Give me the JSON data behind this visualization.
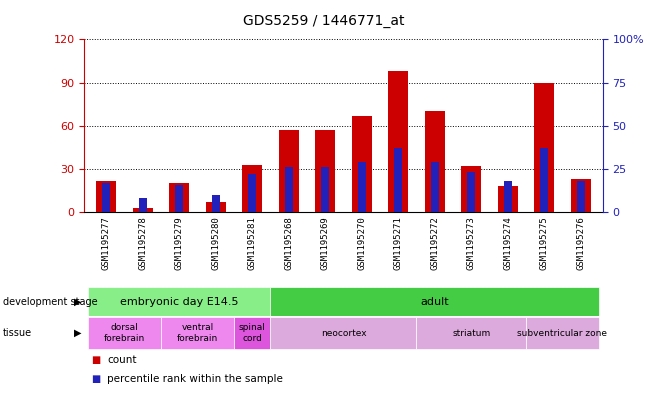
{
  "title": "GDS5259 / 1446771_at",
  "samples": [
    "GSM1195277",
    "GSM1195278",
    "GSM1195279",
    "GSM1195280",
    "GSM1195281",
    "GSM1195268",
    "GSM1195269",
    "GSM1195270",
    "GSM1195271",
    "GSM1195272",
    "GSM1195273",
    "GSM1195274",
    "GSM1195275",
    "GSM1195276"
  ],
  "count_values": [
    22,
    3,
    20,
    7,
    33,
    57,
    57,
    67,
    98,
    70,
    32,
    18,
    90,
    23
  ],
  "percentile_values": [
    17,
    8,
    16,
    10,
    22,
    26,
    26,
    29,
    37,
    29,
    23,
    18,
    37,
    18
  ],
  "ylim_left": [
    0,
    120
  ],
  "ylim_right": [
    0,
    100
  ],
  "yticks_left": [
    0,
    30,
    60,
    90,
    120
  ],
  "yticks_right": [
    0,
    25,
    50,
    75,
    100
  ],
  "yticklabels_right": [
    "0",
    "25",
    "50",
    "75",
    "100%"
  ],
  "bar_color": "#cc0000",
  "percentile_color": "#2222bb",
  "plot_bg": "#ffffff",
  "xticklabel_bg": "#cccccc",
  "left_tick_color": "#cc0000",
  "right_tick_color": "#2222bb",
  "development_stages": [
    {
      "label": "embryonic day E14.5",
      "start": 0,
      "end": 5,
      "color": "#88ee88"
    },
    {
      "label": "adult",
      "start": 5,
      "end": 14,
      "color": "#44cc44"
    }
  ],
  "tissues": [
    {
      "label": "dorsal\nforebrain",
      "start": 0,
      "end": 2,
      "color": "#ee88ee"
    },
    {
      "label": "ventral\nforebrain",
      "start": 2,
      "end": 4,
      "color": "#ee88ee"
    },
    {
      "label": "spinal\ncord",
      "start": 4,
      "end": 5,
      "color": "#dd55dd"
    },
    {
      "label": "neocortex",
      "start": 5,
      "end": 9,
      "color": "#ddaadd"
    },
    {
      "label": "striatum",
      "start": 9,
      "end": 12,
      "color": "#ddaadd"
    },
    {
      "label": "subventricular zone",
      "start": 12,
      "end": 14,
      "color": "#ddaadd"
    }
  ],
  "legend_count_label": "count",
  "legend_percentile_label": "percentile rank within the sample",
  "bar_width": 0.55,
  "percentile_bar_width": 0.22
}
